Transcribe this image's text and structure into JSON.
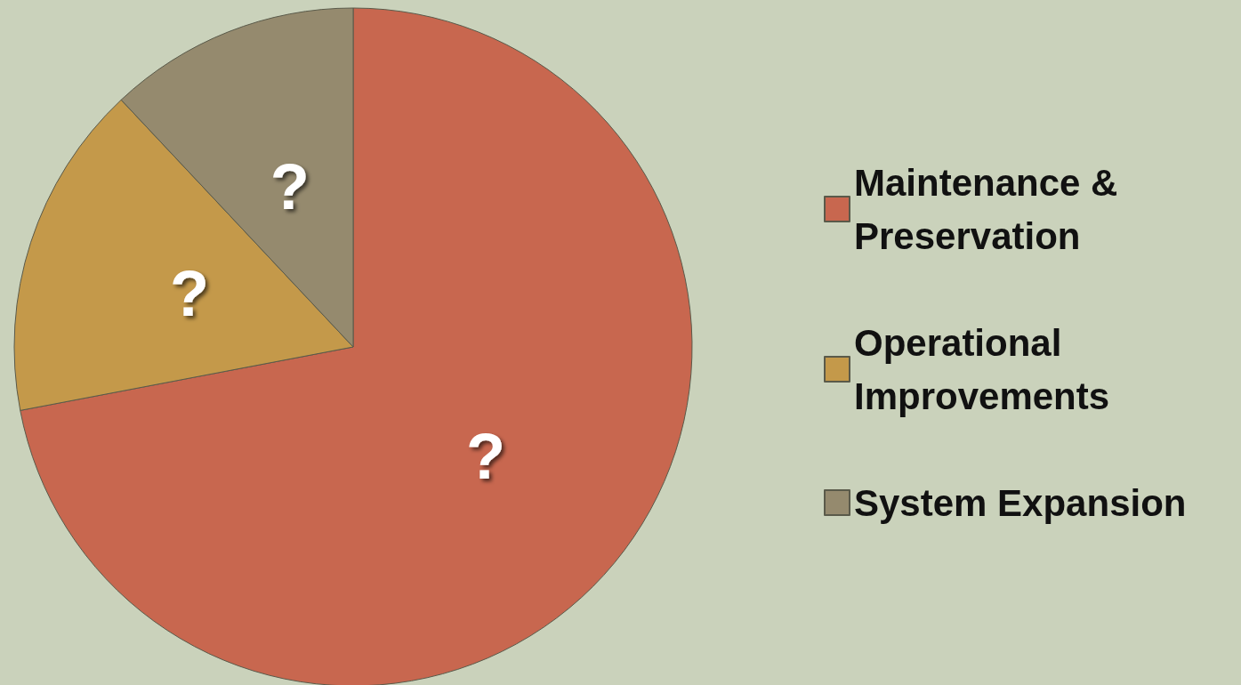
{
  "chart_data": {
    "type": "pie",
    "categories": [
      "Maintenance & Preservation",
      "Operational Improvements",
      "System Expansion"
    ],
    "values": [
      72,
      16,
      12
    ],
    "colors": [
      "#c8674f",
      "#c4994a",
      "#958a6e"
    ],
    "value_labels": [
      "?",
      "?",
      "?"
    ],
    "legend": "right"
  }
}
